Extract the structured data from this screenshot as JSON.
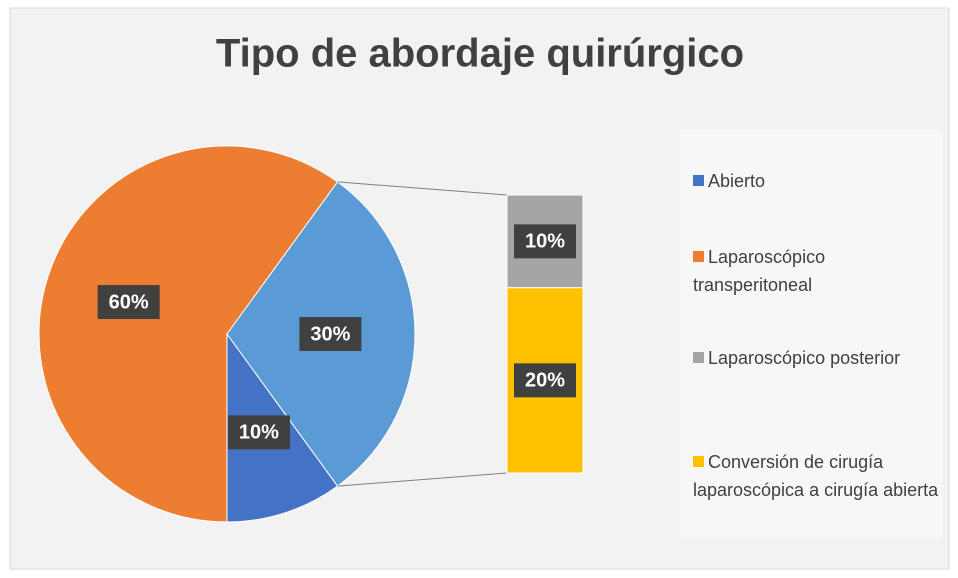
{
  "chart_data": {
    "type": "bar-of-pie",
    "title": "Tipo de abordaje quirúrgico",
    "categories": [
      "Abierto",
      "Laparoscópico transperitoneal",
      "Laparoscópico posterior",
      "Conversión de cirugía laparoscópica a cirugía abierta"
    ],
    "values": [
      10,
      60,
      10,
      20
    ],
    "value_labels": [
      "10%",
      "60%",
      "10%",
      "20%"
    ],
    "colors": [
      "#4472c4",
      "#ed7d31",
      "#a5a5a5",
      "#ffc000"
    ],
    "split": [
      2,
      3
    ],
    "other": {
      "value": 30,
      "label": "30%",
      "color": "#5b9bd5"
    }
  }
}
